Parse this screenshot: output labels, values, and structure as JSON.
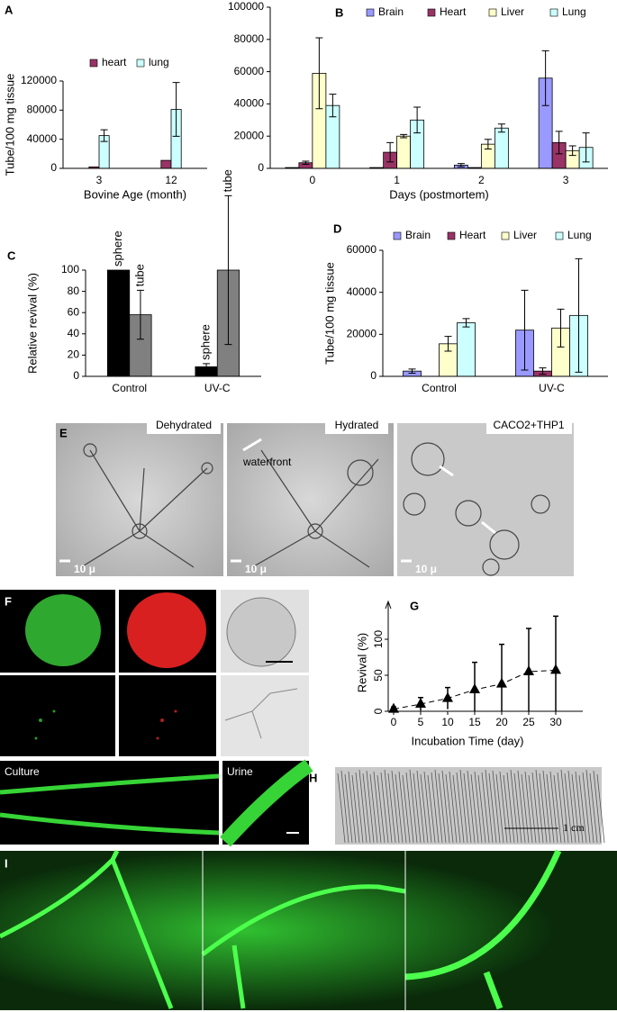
{
  "chart_data": [
    {
      "type": "bar",
      "label": "A",
      "y_label": "Tube/100 mg tissue",
      "x_label": "Bovine Age (month)",
      "categories": [
        "3",
        "12"
      ],
      "series": [
        {
          "name": "heart",
          "color": "#993366",
          "values": [
            2000,
            11000
          ],
          "errors": [
            null,
            null
          ]
        },
        {
          "name": "lung",
          "color": "#ccffff",
          "values": [
            45000,
            81000
          ],
          "errors": [
            8000,
            37000
          ]
        }
      ],
      "ylim": [
        0,
        120000
      ],
      "yticks": [
        0,
        40000,
        80000,
        120000
      ],
      "legend": "top"
    },
    {
      "type": "bar",
      "label": "B",
      "x_label": "Days (postmortem)",
      "categories": [
        "0",
        "1",
        "2",
        "3"
      ],
      "series": [
        {
          "name": "Brain",
          "color": "#9999ff",
          "values": [
            500,
            500,
            2000,
            56000
          ],
          "errors": [
            null,
            null,
            1000,
            17000
          ]
        },
        {
          "name": "Heart",
          "color": "#993366",
          "values": [
            3500,
            10000,
            500,
            16000
          ],
          "errors": [
            1000,
            6000,
            null,
            7000
          ]
        },
        {
          "name": "Liver",
          "color": "#ffffcc",
          "values": [
            59000,
            20000,
            15000,
            11000
          ],
          "errors": [
            22000,
            1000,
            3000,
            3000
          ]
        },
        {
          "name": "Lung",
          "color": "#ccffff",
          "values": [
            39000,
            30000,
            25000,
            13000
          ],
          "errors": [
            7000,
            8000,
            2500,
            9000
          ]
        }
      ],
      "ylim": [
        0,
        100000
      ],
      "yticks": [
        0,
        20000,
        40000,
        60000,
        80000,
        100000
      ],
      "legend": "top"
    },
    {
      "type": "bar",
      "label": "C",
      "y_label": "Relative revival (%)",
      "categories": [
        "Control",
        "UV-C"
      ],
      "series": [
        {
          "name": "sphere",
          "color": "#000000",
          "values": [
            100,
            9
          ],
          "errors": [
            null,
            3
          ]
        },
        {
          "name": "tube",
          "color": "#808080",
          "values": [
            58,
            100
          ],
          "errors": [
            23,
            70
          ]
        }
      ],
      "ylim": [
        0,
        100
      ],
      "yticks": [
        0,
        20,
        40,
        60,
        80,
        100
      ],
      "legend": "above-bars"
    },
    {
      "type": "bar",
      "label": "D",
      "y_label": "Tube/100 mg tissue",
      "categories": [
        "Control",
        "UV-C"
      ],
      "series": [
        {
          "name": "Brain",
          "color": "#9999ff",
          "values": [
            2500,
            22000
          ],
          "errors": [
            1000,
            19000
          ]
        },
        {
          "name": "Heart",
          "color": "#993366",
          "values": [
            null,
            2500
          ],
          "errors": [
            null,
            1500
          ]
        },
        {
          "name": "Liver",
          "color": "#ffffcc",
          "values": [
            15500,
            23000
          ],
          "errors": [
            3500,
            9000
          ]
        },
        {
          "name": "Lung",
          "color": "#ccffff",
          "values": [
            25500,
            29000
          ],
          "errors": [
            2000,
            27000
          ]
        }
      ],
      "ylim": [
        0,
        60000
      ],
      "yticks": [
        0,
        20000,
        40000,
        60000
      ],
      "legend": "top"
    },
    {
      "type": "line",
      "label": "G",
      "y_label": "Revival  (%)",
      "x_label": "Incubation Time (day)",
      "x": [
        0,
        5,
        10,
        15,
        20,
        25,
        30
      ],
      "values": [
        3,
        10,
        18,
        30,
        38,
        55,
        57
      ],
      "errors": [
        3,
        9,
        15,
        38,
        55,
        60,
        75
      ],
      "color": "#000000",
      "xlim": [
        -1,
        35
      ],
      "xticks": [
        0,
        5,
        10,
        15,
        20,
        25,
        30
      ],
      "ylim": [
        0,
        135
      ],
      "yticks": [
        0,
        50,
        100
      ]
    }
  ],
  "panels": {
    "E": {
      "label": "E",
      "titles": [
        "Dehydrated",
        "Hydrated",
        "CACO2+THP1"
      ],
      "annotation": "waterfront",
      "scales": [
        "10 μ",
        "10 μ",
        "10 μ"
      ]
    },
    "F": {
      "label": "F",
      "titles": [
        "Culture",
        "Urine"
      ]
    },
    "H": {
      "label": "H",
      "scale": "1 cm"
    },
    "I": {
      "label": "I"
    }
  }
}
